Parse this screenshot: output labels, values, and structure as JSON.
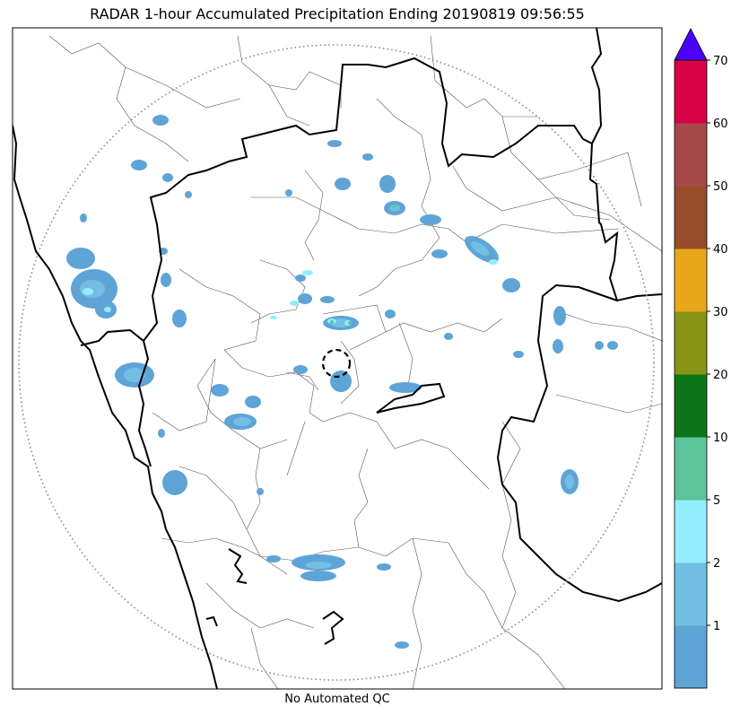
{
  "title": "RADAR 1-hour Accumulated Precipitation Ending 20190819 09:56:55",
  "footer": "No Automated QC",
  "colorbar": {
    "bins": [
      {
        "label": "",
        "color": "#5ea4d6"
      },
      {
        "label": "1",
        "color": "#72bfe3"
      },
      {
        "label": "2",
        "color": "#92eefe"
      },
      {
        "label": "5",
        "color": "#5cc49a"
      },
      {
        "label": "10",
        "color": "#0c7419"
      },
      {
        "label": "20",
        "color": "#889416"
      },
      {
        "label": "30",
        "color": "#e8a81a"
      },
      {
        "label": "40",
        "color": "#984c2a"
      },
      {
        "label": "50",
        "color": "#a54a48"
      },
      {
        "label": "60",
        "color": "#d70046"
      }
    ],
    "top_label": "70",
    "extend_color": "#4b00ff"
  },
  "colors": {
    "coast": "#000000",
    "state_border": "#000000",
    "district_border": "#555555",
    "range_ring": "#888888"
  }
}
